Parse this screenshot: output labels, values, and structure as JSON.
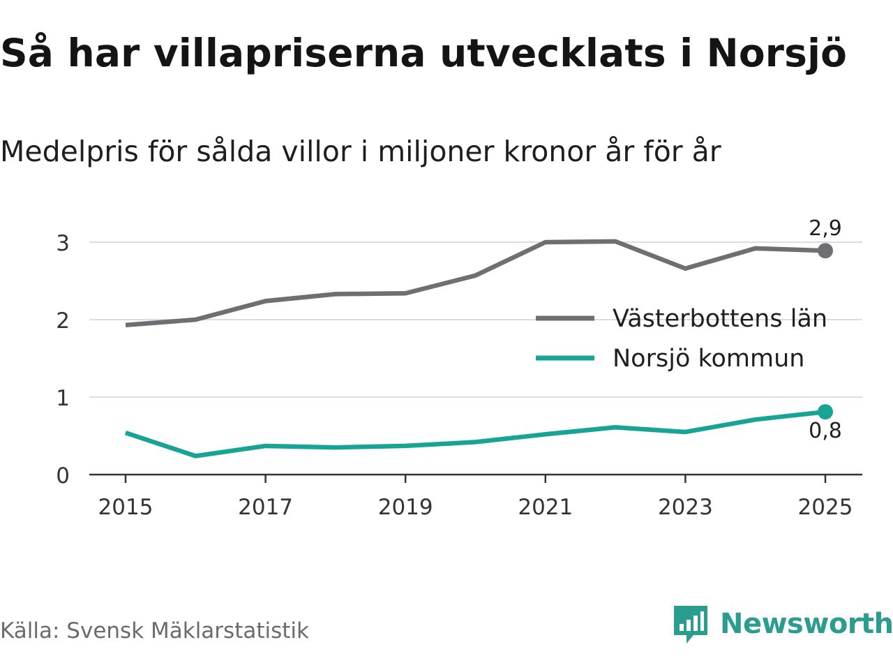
{
  "title": "Så har villapriserna utvecklats i Norsjö",
  "subtitle": "Medelpris för sålda villor i miljoner kronor år för år",
  "source": "Källa: Svensk Mäklarstatistik",
  "brand": {
    "name": "Newsworthy",
    "color": "#2a9d8f"
  },
  "chart_data": {
    "type": "line",
    "title": "Så har villapriserna utvecklats i Norsjö",
    "subtitle": "Medelpris för sålda villor i miljoner kronor år för år",
    "xlabel": "",
    "ylabel": "",
    "x": [
      2015,
      2016,
      2017,
      2018,
      2019,
      2020,
      2021,
      2022,
      2023,
      2024,
      2025
    ],
    "x_ticks": [
      "2015",
      "2017",
      "2019",
      "2021",
      "2023",
      "2025"
    ],
    "y_ticks": [
      "0",
      "1",
      "2",
      "3"
    ],
    "ylim": [
      0,
      3.2
    ],
    "grid": true,
    "legend_position": "right",
    "series": [
      {
        "name": "Västerbottens län",
        "color": "#6e6e73",
        "values": [
          1.93,
          2.0,
          2.24,
          2.33,
          2.34,
          2.57,
          3.0,
          3.01,
          2.66,
          2.92,
          2.89
        ],
        "end_label": "2,9"
      },
      {
        "name": "Norsjö kommun",
        "color": "#17a495",
        "values": [
          0.54,
          0.24,
          0.37,
          0.35,
          0.37,
          0.42,
          0.52,
          0.61,
          0.55,
          0.71,
          0.81
        ],
        "end_label": "0,8"
      }
    ]
  }
}
